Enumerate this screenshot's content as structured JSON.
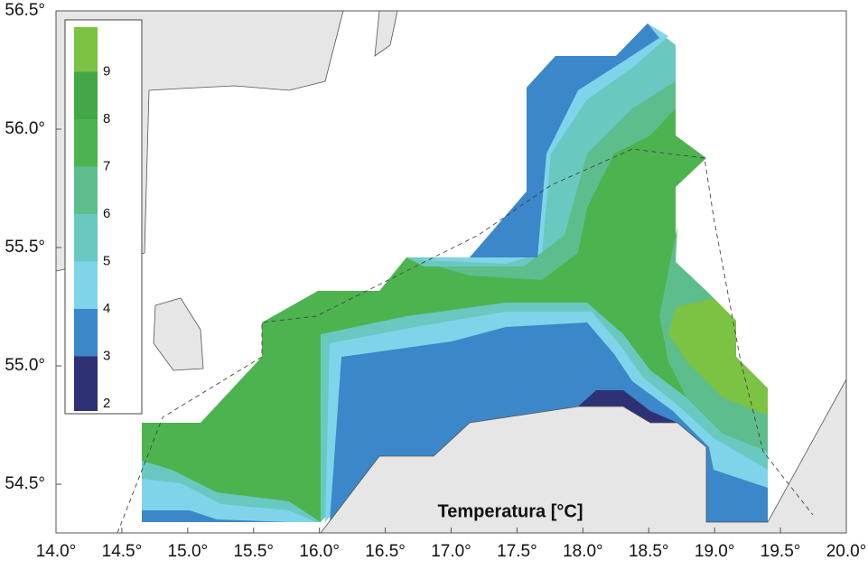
{
  "map": {
    "title": "Temperatura [°C]",
    "xlim": [
      14,
      20
    ],
    "ylim": [
      54.294,
      56.5
    ],
    "xticks": [
      {
        "value": 14,
        "label": "14.0°"
      },
      {
        "value": 14.5,
        "label": "14.5°"
      },
      {
        "value": 15,
        "label": "15.0°"
      },
      {
        "value": 15.5,
        "label": "15.5°"
      },
      {
        "value": 16,
        "label": "16.0°"
      },
      {
        "value": 16.5,
        "label": "16.5°"
      },
      {
        "value": 17,
        "label": "17.0°"
      },
      {
        "value": 17.5,
        "label": "17.5°"
      },
      {
        "value": 18,
        "label": "18.0°"
      },
      {
        "value": 18.5,
        "label": "18.5°"
      },
      {
        "value": 19,
        "label": "19.0°"
      },
      {
        "value": 19.5,
        "label": "19.5°"
      },
      {
        "value": 20,
        "label": "20.0°"
      }
    ],
    "yticks": [
      {
        "value": 54.5,
        "label": "54.5°"
      },
      {
        "value": 55,
        "label": "55.0°"
      },
      {
        "value": 55.5,
        "label": "55.5°"
      },
      {
        "value": 56,
        "label": "56.0°"
      },
      {
        "value": 56.5,
        "label": "56.5°"
      }
    ],
    "legend": {
      "levels": [
        2,
        3,
        4,
        5,
        6,
        7,
        8,
        9
      ],
      "colors": [
        "#2e3174",
        "#3b87c9",
        "#7fd4ea",
        "#69c9c1",
        "#5ebd8c",
        "#4db34f",
        "#44a745",
        "#7cc243"
      ]
    }
  }
}
